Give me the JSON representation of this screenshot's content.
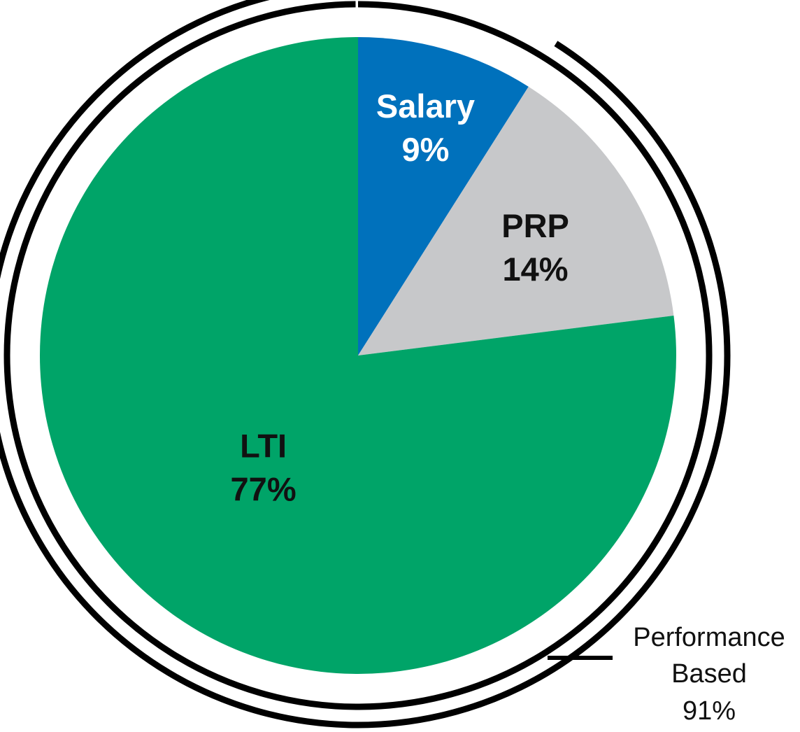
{
  "chart_data": {
    "type": "pie",
    "title": "",
    "start_angle_deg": 0,
    "direction": "clockwise",
    "slices": [
      {
        "label": "Salary",
        "value": 9,
        "value_text": "9%",
        "color": "#0071BC",
        "text_color": "#FFFFFF"
      },
      {
        "label": "PRP",
        "value": 14,
        "value_text": "14%",
        "color": "#C7C8CA",
        "text_color": "#111111"
      },
      {
        "label": "LTI",
        "value": 77,
        "value_text": "77%",
        "color": "#00A468",
        "text_color": "#111111"
      }
    ],
    "outer_rings": [
      {
        "name": "total",
        "from_slice": 0,
        "to_slice": 2
      },
      {
        "name": "performance-based",
        "from_slice": 1,
        "to_slice": 2
      }
    ],
    "group_annotation": {
      "line1": "Performance",
      "line2": "Based",
      "line3": "91%"
    }
  }
}
